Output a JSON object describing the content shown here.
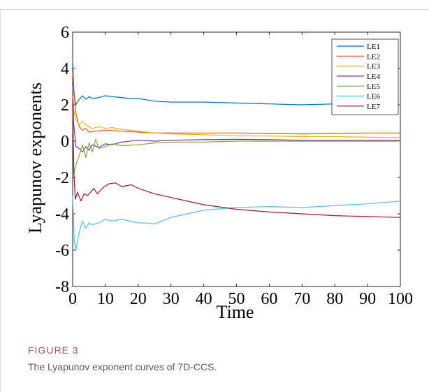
{
  "figure": {
    "label": "FIGURE 3",
    "caption": "The Lyapunov exponent curves of 7D-CCS."
  },
  "chart_data": {
    "type": "line",
    "title": "",
    "xlabel": "Time",
    "ylabel": "Lyapunov exponents",
    "xlim": [
      0,
      100
    ],
    "ylim": [
      -8,
      6
    ],
    "xticks": [
      "0",
      "10",
      "20",
      "30",
      "40",
      "50",
      "60",
      "70",
      "80",
      "90",
      "100"
    ],
    "yticks": [
      "6",
      "4",
      "2",
      "0",
      "-2",
      "-4",
      "-6",
      "-8"
    ],
    "grid": false,
    "legend_position": "top-right",
    "series": [
      {
        "name": "LE1",
        "color": "#0072bd",
        "x": [
          0,
          0.4,
          1,
          2,
          3,
          4,
          5,
          6,
          8,
          10,
          12,
          14,
          17,
          20,
          25,
          30,
          40,
          50,
          60,
          70,
          80,
          90,
          100
        ],
        "y": [
          4.5,
          2.6,
          2.0,
          2.3,
          2.5,
          2.3,
          2.45,
          2.35,
          2.4,
          2.5,
          2.45,
          2.42,
          2.35,
          2.35,
          2.2,
          2.15,
          2.15,
          2.1,
          2.05,
          2.0,
          2.05,
          2.05,
          2.0
        ]
      },
      {
        "name": "LE2",
        "color": "#d95319",
        "x": [
          0,
          0.3,
          1,
          2,
          3,
          4,
          5,
          7,
          10,
          15,
          20,
          25,
          30,
          40,
          50,
          60,
          70,
          80,
          90,
          100
        ],
        "y": [
          3.8,
          3.0,
          1.5,
          0.8,
          0.6,
          0.7,
          0.5,
          0.55,
          0.6,
          0.55,
          0.5,
          0.45,
          0.45,
          0.45,
          0.45,
          0.42,
          0.4,
          0.42,
          0.45,
          0.45
        ]
      },
      {
        "name": "LE3",
        "color": "#edb120",
        "x": [
          0,
          0.5,
          1,
          2,
          3,
          4,
          6,
          8,
          10,
          12,
          15,
          18,
          20,
          25,
          30,
          40,
          50,
          60,
          70,
          80,
          90,
          100
        ],
        "y": [
          2.5,
          1.5,
          1.2,
          0.9,
          1.1,
          0.9,
          0.7,
          0.8,
          0.7,
          0.75,
          0.65,
          0.6,
          0.55,
          0.45,
          0.4,
          0.35,
          0.3,
          0.28,
          0.25,
          0.25,
          0.22,
          0.2
        ]
      },
      {
        "name": "LE4",
        "color": "#7e2f8e",
        "x": [
          0,
          0.3,
          1,
          2,
          3,
          4,
          5,
          6,
          8,
          10,
          12,
          15,
          20,
          25,
          30,
          40,
          50,
          60,
          70,
          80,
          90,
          100
        ],
        "y": [
          3.0,
          1.0,
          -0.3,
          -0.4,
          -0.6,
          -0.3,
          -0.5,
          -0.2,
          -0.35,
          -0.15,
          -0.2,
          -0.05,
          0.05,
          0.0,
          0.05,
          0.08,
          0.1,
          0.08,
          0.05,
          0.05,
          0.05,
          0.05
        ]
      },
      {
        "name": "LE5",
        "color": "#77ac30",
        "x": [
          0,
          0.4,
          1,
          2,
          3,
          4,
          5,
          6,
          7,
          8,
          10,
          12,
          15,
          20,
          25,
          30,
          40,
          50,
          60,
          70,
          80,
          90,
          100
        ],
        "y": [
          2.0,
          -1.8,
          -1.3,
          -0.8,
          -0.2,
          -0.9,
          -0.1,
          -0.6,
          0.1,
          -0.4,
          -0.3,
          -0.15,
          -0.25,
          -0.2,
          -0.1,
          -0.05,
          -0.05,
          0.0,
          0.0,
          0.0,
          0.0,
          0.0,
          0.0
        ]
      },
      {
        "name": "LE6",
        "color": "#4dbeee",
        "x": [
          0,
          0.5,
          1,
          2,
          3,
          4,
          5,
          6,
          8,
          10,
          12,
          15,
          20,
          22,
          25,
          28,
          30,
          35,
          40,
          50,
          60,
          70,
          80,
          90,
          100
        ],
        "y": [
          -3.0,
          -5.5,
          -6.0,
          -5.0,
          -4.4,
          -4.8,
          -4.5,
          -4.6,
          -4.5,
          -4.3,
          -4.4,
          -4.3,
          -4.5,
          -4.5,
          -4.55,
          -4.35,
          -4.2,
          -4.0,
          -3.8,
          -3.65,
          -3.6,
          -3.65,
          -3.55,
          -3.45,
          -3.3
        ]
      },
      {
        "name": "LE7",
        "color": "#a2142f",
        "x": [
          0,
          0.3,
          0.8,
          1.5,
          2.5,
          3.5,
          4.5,
          5.5,
          6.5,
          7.5,
          9,
          11,
          13,
          15,
          18,
          20,
          25,
          30,
          40,
          50,
          60,
          70,
          80,
          90,
          100
        ],
        "y": [
          2.0,
          -1.5,
          -3.2,
          -2.8,
          -3.3,
          -2.9,
          -3.0,
          -2.8,
          -2.6,
          -2.9,
          -2.6,
          -2.35,
          -2.3,
          -2.5,
          -2.4,
          -2.6,
          -2.9,
          -3.1,
          -3.5,
          -3.75,
          -3.9,
          -4.0,
          -4.1,
          -4.15,
          -4.2
        ]
      }
    ]
  }
}
